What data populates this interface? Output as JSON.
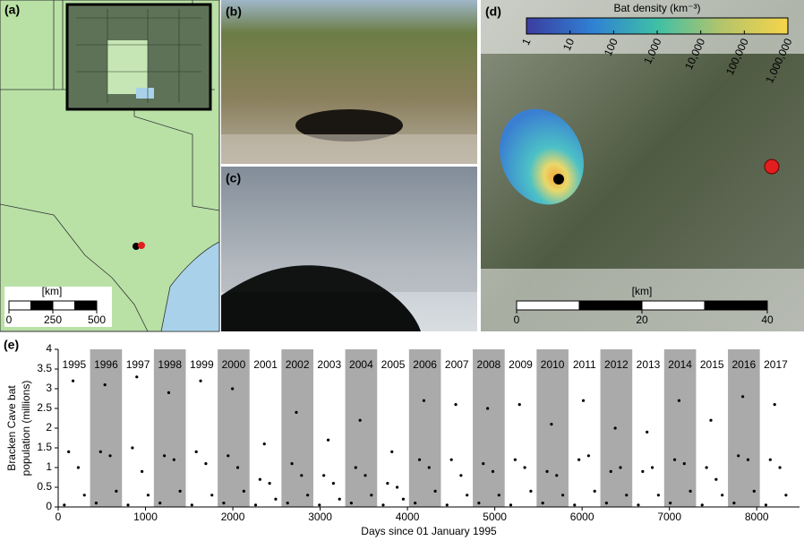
{
  "panels": {
    "a": {
      "label": "(a)",
      "scale": {
        "unit": "[km]",
        "lim": [
          0,
          500
        ],
        "ticks": [
          0,
          250,
          500
        ]
      }
    },
    "b": {
      "label": "(b)"
    },
    "c": {
      "label": "(c)"
    },
    "d": {
      "label": "(d)",
      "colorbar": {
        "title": "Bat density (km⁻³)",
        "lim": [
          1,
          1000000
        ],
        "log": true,
        "ticks": [
          1,
          10,
          100,
          {
            "value": 1000,
            "label": "1,000"
          },
          {
            "value": 10000,
            "label": "10,000"
          },
          {
            "value": 100000,
            "label": "100,000"
          },
          {
            "value": 1000000,
            "label": "1,000,000"
          }
        ]
      },
      "scale": {
        "unit": "[km]",
        "lim": [
          0,
          40
        ],
        "ticks": [
          0,
          20,
          40
        ]
      }
    }
  },
  "chart_data": {
    "type": "scatter",
    "panel_label": "(e)",
    "y_label": [
      "Bracken Cave bat",
      "population (millions)"
    ],
    "x_label": "Days since 01 January 1995",
    "year_labels": [
      "1995",
      "1996",
      "1997",
      "1998",
      "1999",
      "2000",
      "2001",
      "2002",
      "2003",
      "2004",
      "2005",
      "2006",
      "2007",
      "2008",
      "2009",
      "2010",
      "2011",
      "2012",
      "2013",
      "2014",
      "2015",
      "2016",
      "2017"
    ],
    "color": "#000000",
    "x": [
      70,
      120,
      170,
      230,
      300,
      435,
      485,
      535,
      595,
      665,
      800,
      850,
      900,
      960,
      1030,
      1166,
      1216,
      1266,
      1326,
      1396,
      1531,
      1581,
      1631,
      1691,
      1761,
      1896,
      1946,
      1996,
      2056,
      2126,
      2261,
      2311,
      2361,
      2421,
      2491,
      2627,
      2677,
      2727,
      2787,
      2857,
      2992,
      3042,
      3092,
      3152,
      3222,
      3357,
      3407,
      3457,
      3517,
      3587,
      3722,
      3772,
      3822,
      3882,
      3952,
      4088,
      4138,
      4188,
      4248,
      4318,
      4453,
      4503,
      4553,
      4613,
      4683,
      4818,
      4868,
      4918,
      4978,
      5048,
      5183,
      5233,
      5283,
      5343,
      5413,
      5549,
      5599,
      5649,
      5709,
      5779,
      5914,
      5964,
      6014,
      6074,
      6144,
      6279,
      6329,
      6379,
      6439,
      6509,
      6644,
      6694,
      6744,
      6804,
      6874,
      7010,
      7060,
      7110,
      7170,
      7240,
      7375,
      7425,
      7475,
      7535,
      7605,
      7740,
      7790,
      7840,
      7900,
      7970,
      8105,
      8155,
      8205,
      8265,
      8335
    ],
    "values": [
      0.05,
      1.4,
      3.2,
      1.0,
      0.3,
      0.1,
      1.4,
      3.1,
      1.3,
      0.4,
      0.05,
      1.5,
      3.3,
      0.9,
      0.3,
      0.1,
      1.3,
      2.9,
      1.2,
      0.4,
      0.05,
      1.4,
      3.2,
      1.1,
      0.3,
      0.1,
      1.3,
      3.0,
      1.0,
      0.4,
      0.05,
      0.7,
      1.6,
      0.6,
      0.2,
      0.1,
      1.1,
      2.4,
      0.8,
      0.3,
      0.05,
      0.8,
      1.7,
      0.6,
      0.2,
      0.1,
      1.0,
      2.2,
      0.8,
      0.3,
      0.05,
      0.6,
      1.4,
      0.5,
      0.2,
      0.1,
      1.2,
      2.7,
      1.0,
      0.4,
      0.05,
      1.2,
      2.6,
      0.8,
      0.3,
      0.1,
      1.1,
      2.5,
      0.9,
      0.3,
      0.05,
      1.2,
      2.6,
      1.0,
      0.4,
      0.1,
      0.9,
      2.1,
      0.8,
      0.3,
      0.05,
      1.2,
      2.7,
      1.3,
      0.4,
      0.1,
      0.9,
      2.0,
      1.0,
      0.3,
      0.05,
      0.9,
      1.9,
      1.0,
      0.3,
      0.1,
      1.2,
      2.7,
      1.1,
      0.4,
      0.05,
      1.0,
      2.2,
      0.7,
      0.3,
      0.1,
      1.3,
      2.8,
      1.2,
      0.4,
      0.05,
      1.2,
      2.6,
      1.0,
      0.3
    ],
    "xlim": [
      0,
      8490
    ],
    "ylim": [
      0,
      4
    ],
    "xticks": [
      0,
      1000,
      2000,
      3000,
      4000,
      5000,
      6000,
      7000,
      8000
    ],
    "yticks": [
      0,
      0.5,
      1,
      1.5,
      2,
      2.5,
      3,
      3.5,
      4
    ]
  }
}
